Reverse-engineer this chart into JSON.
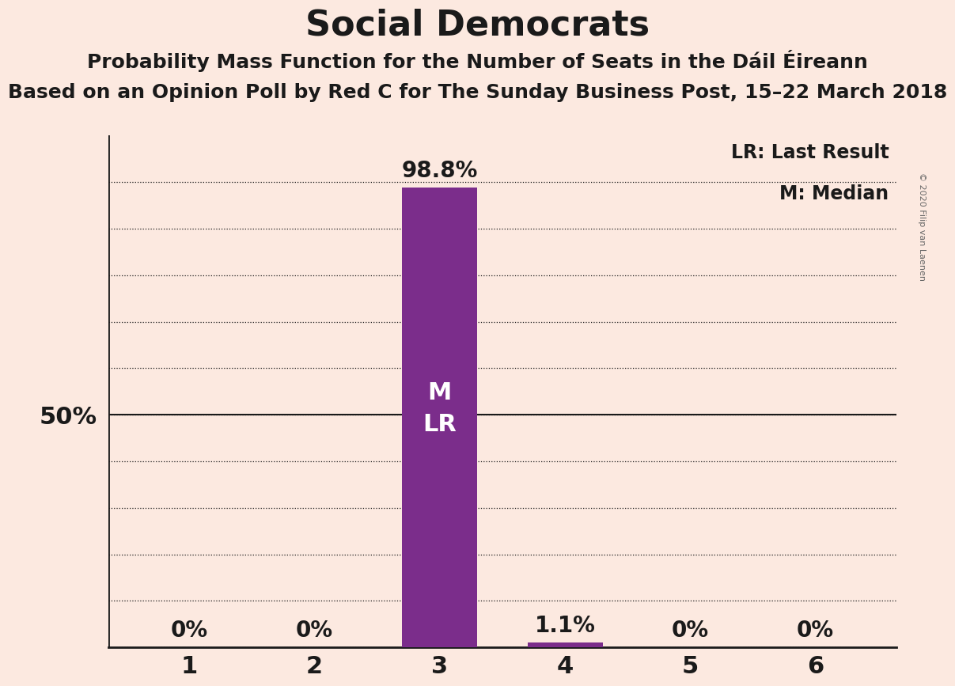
{
  "title": "Social Democrats",
  "subtitle1": "Probability Mass Function for the Number of Seats in the Dáil Éireann",
  "subtitle2": "Based on an Opinion Poll by Red C for The Sunday Business Post, 15–22 March 2018",
  "copyright": "© 2020 Filip van Laenen",
  "categories": [
    1,
    2,
    3,
    4,
    5,
    6
  ],
  "values": [
    0.0,
    0.0,
    98.8,
    1.1,
    0.0,
    0.0
  ],
  "bar_color": "#7b2d8b",
  "background_color": "#fce9e0",
  "legend_lr": "LR: Last Result",
  "legend_m": "M: Median",
  "median_seat": 3,
  "last_result_seat": 3,
  "bar_label_color_outside": "#1a1a1a",
  "ylim": [
    0,
    110
  ],
  "grid_color": "#1a1a1a",
  "axis_color": "#1a1a1a"
}
